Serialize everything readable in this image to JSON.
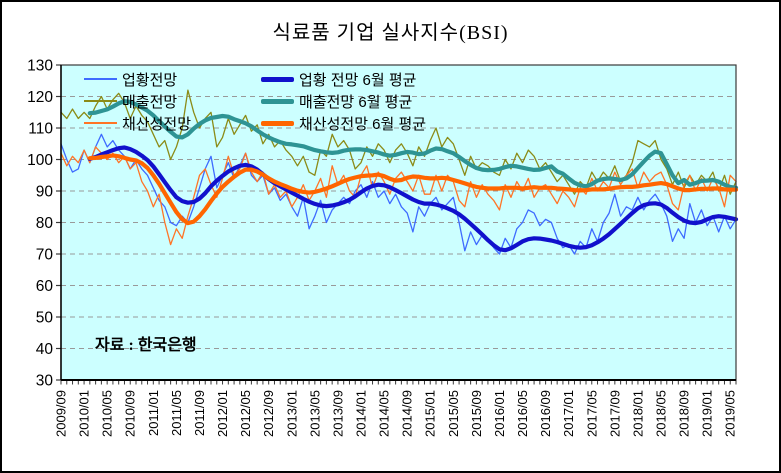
{
  "title": "식료품 기업 실사지수(BSI)",
  "source_note": "자료 : 한국은행",
  "colors": {
    "plot_background": "#CCFFFF",
    "gridline": "#999999",
    "axis": "#3a3a3a",
    "outlook_thin": "#3E6BFF",
    "sales_thin": "#8B8B17",
    "profit_thin": "#FF7426",
    "outlook_avg": "#1111CC",
    "sales_avg": "#2E9494",
    "profit_avg": "#FF6600"
  },
  "axes": {
    "y": {
      "min": 30,
      "max": 130,
      "step": 10,
      "tick_values": [
        30,
        40,
        50,
        60,
        70,
        80,
        90,
        100,
        110,
        120,
        130
      ],
      "grid_values": [
        40,
        50,
        60,
        70,
        80,
        90,
        100,
        110,
        120
      ]
    },
    "x": {
      "tick_labels": [
        "2009/09",
        "2010/01",
        "2010/05",
        "2010/09",
        "2011/01",
        "2011/05",
        "2011/09",
        "2012/01",
        "2012/05",
        "2012/09",
        "2013/01",
        "2013/05",
        "2013/09",
        "2014/01",
        "2014/05",
        "2014/09",
        "2015/01",
        "2015/05",
        "2015/09",
        "2016/01",
        "2016/05",
        "2016/09",
        "2017/01",
        "2017/05",
        "2017/09",
        "2018/01",
        "2018/05",
        "2018/09",
        "2019/01",
        "2019/05"
      ],
      "months_per_label": 4
    }
  },
  "legend": {
    "thin": [
      {
        "label": "업황전망",
        "color": "#3E6BFF"
      },
      {
        "label": "매출전망",
        "color": "#8B8B17"
      },
      {
        "label": "채산성전망",
        "color": "#FF7426"
      }
    ],
    "thick": [
      {
        "label": "업황 전망 6월 평균",
        "color": "#1111CC"
      },
      {
        "label": "매출전망 6월 평균",
        "color": "#2E9494"
      },
      {
        "label": "채산성전망 6월 평균",
        "color": "#FF6600"
      }
    ]
  },
  "chart_data": {
    "type": "line",
    "title": "식료품 기업 실사지수(BSI)",
    "x_start": "2009/09",
    "x_end": "2019/06",
    "x_frequency": "monthly",
    "ylim": [
      30,
      130
    ],
    "grid": "horizontal-dashed",
    "legend_position": "top-left-inside",
    "x_tick_labels": [
      "2009/09",
      "2010/01",
      "2010/05",
      "2010/09",
      "2011/01",
      "2011/05",
      "2011/09",
      "2012/01",
      "2012/05",
      "2012/09",
      "2013/01",
      "2013/05",
      "2013/09",
      "2014/01",
      "2014/05",
      "2014/09",
      "2015/01",
      "2015/05",
      "2015/09",
      "2016/01",
      "2016/05",
      "2016/09",
      "2017/01",
      "2017/05",
      "2017/09",
      "2018/01",
      "2018/05",
      "2018/09",
      "2019/01",
      "2019/05"
    ],
    "series": [
      {
        "name": "업황전망",
        "color": "#3E6BFF",
        "width": 1.3,
        "values": [
          105,
          100,
          96,
          97,
          103,
          99,
          104,
          108,
          104,
          106,
          103,
          101,
          97,
          100,
          97,
          95,
          91,
          87,
          85,
          80,
          79,
          82,
          80,
          85,
          91,
          97,
          101,
          91,
          95,
          99,
          94,
          98,
          102,
          95,
          93,
          95,
          89,
          91,
          87,
          89,
          85,
          82,
          88,
          78,
          82,
          87,
          80,
          84,
          86,
          88,
          86,
          90,
          92,
          88,
          93,
          88,
          90,
          86,
          89,
          85,
          83,
          77,
          85,
          82,
          86,
          88,
          84,
          86,
          88,
          80,
          71,
          77,
          73,
          76,
          75,
          72,
          70,
          75,
          72,
          78,
          80,
          84,
          83,
          79,
          81,
          80,
          75,
          72,
          73,
          70,
          74,
          72,
          78,
          74,
          80,
          83,
          89,
          82,
          85,
          84,
          88,
          84,
          87,
          89,
          86,
          82,
          74,
          78,
          75,
          86,
          80,
          84,
          79,
          82,
          77,
          82,
          78,
          81
        ]
      },
      {
        "name": "매출전망",
        "color": "#8B8B17",
        "width": 1.3,
        "values": [
          115,
          113,
          116,
          113,
          115,
          113,
          117,
          120,
          116,
          119,
          121,
          118,
          113,
          117,
          114,
          112,
          108,
          104,
          106,
          100,
          104,
          110,
          122,
          115,
          110,
          113,
          115,
          104,
          107,
          113,
          108,
          111,
          114,
          109,
          111,
          105,
          108,
          104,
          106,
          103,
          101,
          98,
          101,
          96,
          95,
          103,
          101,
          108,
          104,
          106,
          103,
          97,
          99,
          104,
          101,
          105,
          103,
          99,
          103,
          105,
          102,
          98,
          104,
          101,
          106,
          110,
          104,
          107,
          105,
          100,
          95,
          101,
          97,
          99,
          98,
          96,
          95,
          100,
          97,
          102,
          99,
          103,
          101,
          97,
          99,
          96,
          93,
          95,
          92,
          89,
          93,
          91,
          96,
          93,
          96,
          94,
          98,
          93,
          95,
          99,
          106,
          105,
          104,
          106,
          100,
          97,
          92,
          96,
          91,
          95,
          92,
          95,
          93,
          96,
          90,
          95,
          89,
          93
        ]
      },
      {
        "name": "채산성전망",
        "color": "#FF7426",
        "width": 1.3,
        "values": [
          102,
          98,
          101,
          99,
          103,
          99,
          104,
          102,
          100,
          102,
          99,
          101,
          97,
          99,
          93,
          90,
          85,
          89,
          80,
          73,
          78,
          75,
          82,
          88,
          95,
          97,
          92,
          88,
          94,
          101,
          95,
          97,
          102,
          96,
          93,
          96,
          89,
          92,
          88,
          90,
          85,
          88,
          92,
          87,
          90,
          94,
          88,
          98,
          92,
          95,
          90,
          88,
          95,
          98,
          91,
          96,
          93,
          89,
          94,
          96,
          93,
          90,
          95,
          89,
          89,
          95,
          90,
          95,
          93,
          87,
          85,
          93,
          88,
          92,
          89,
          87,
          84,
          92,
          88,
          93,
          90,
          94,
          88,
          91,
          92,
          89,
          86,
          90,
          88,
          85,
          91,
          89,
          94,
          90,
          93,
          91,
          96,
          92,
          95,
          97,
          91,
          96,
          93,
          95,
          96,
          92,
          86,
          84,
          92,
          95,
          90,
          94,
          90,
          94,
          91,
          85,
          95,
          93
        ]
      },
      {
        "name": "업황 전망 6월 평균",
        "color": "#1111CC",
        "width": 4.2,
        "values": [
          null,
          null,
          null,
          null,
          null,
          100.2,
          100.8,
          101.6,
          102.3,
          103.0,
          103.6,
          103.8,
          103.3,
          102.4,
          101.2,
          99.8,
          97.8,
          95.3,
          92.8,
          90.3,
          88.0,
          86.8,
          86.3,
          86.5,
          87.6,
          89.3,
          91.5,
          93.3,
          94.8,
          96.2,
          97.2,
          98.0,
          98.3,
          97.8,
          96.8,
          95.3,
          93.8,
          92.5,
          91.5,
          90.5,
          89.5,
          88.5,
          87.5,
          86.6,
          85.9,
          85.4,
          85.2,
          85.4,
          85.8,
          86.4,
          87.2,
          88.3,
          89.6,
          90.8,
          91.6,
          92.0,
          91.8,
          91.2,
          90.3,
          89.3,
          88.3,
          87.3,
          86.5,
          86.0,
          86.0,
          85.7,
          85.2,
          84.5,
          83.7,
          82.6,
          81.2,
          79.6,
          77.9,
          76.2,
          74.4,
          72.8,
          71.5,
          71.2,
          71.8,
          72.9,
          74.0,
          74.7,
          75.0,
          74.9,
          74.6,
          74.3,
          73.8,
          73.2,
          72.6,
          72.2,
          72.0,
          72.2,
          72.8,
          73.7,
          74.9,
          76.3,
          77.9,
          79.6,
          81.3,
          83.0,
          84.5,
          85.5,
          86.0,
          86.1,
          85.7,
          84.6,
          83.1,
          81.7,
          80.6,
          80.0,
          79.8,
          80.2,
          81.0,
          81.7,
          82.0,
          81.8,
          81.4,
          81.0
        ]
      },
      {
        "name": "매출전망 6월 평균",
        "color": "#2E9494",
        "width": 4.2,
        "values": [
          null,
          null,
          null,
          null,
          null,
          114.7,
          114.9,
          115.4,
          115.9,
          116.8,
          117.8,
          118.5,
          118.3,
          117.5,
          116.5,
          115.5,
          114.0,
          112.2,
          110.5,
          108.8,
          107.3,
          107.0,
          108.0,
          109.8,
          111.3,
          112.4,
          113.2,
          113.5,
          113.8,
          113.6,
          112.8,
          112.2,
          111.5,
          110.5,
          109.2,
          108.0,
          107.0,
          106.2,
          105.5,
          105.0,
          104.8,
          104.5,
          104.2,
          103.6,
          103.0,
          102.6,
          102.3,
          102.1,
          102.3,
          102.8,
          103.1,
          103.2,
          103.2,
          103.0,
          102.6,
          102.2,
          101.6,
          101.2,
          101.5,
          102.0,
          102.4,
          102.2,
          101.7,
          101.9,
          102.8,
          103.5,
          103.3,
          102.6,
          102.0,
          100.8,
          99.5,
          98.3,
          97.3,
          96.8,
          96.6,
          96.7,
          97.0,
          97.6,
          98.0,
          97.8,
          97.4,
          97.0,
          96.7,
          96.8,
          97.3,
          97.8,
          96.2,
          95.5,
          94.0,
          92.6,
          91.8,
          91.5,
          92.2,
          93.3,
          93.8,
          94.0,
          93.8,
          93.5,
          94.0,
          95.3,
          97.3,
          99.3,
          101.2,
          102.5,
          102.0,
          98.5,
          95.0,
          92.5,
          93.5,
          92.0,
          92.5,
          93.2,
          93.3,
          93.5,
          93.0,
          92.0,
          91.3,
          91.0
        ]
      },
      {
        "name": "채산성전망 6월 평균",
        "color": "#FF6600",
        "width": 4.2,
        "values": [
          null,
          null,
          null,
          null,
          null,
          100.4,
          100.5,
          100.8,
          101.0,
          101.3,
          101.0,
          100.5,
          100.0,
          99.7,
          98.8,
          97.3,
          95.0,
          92.3,
          89.3,
          86.3,
          83.3,
          81.0,
          79.8,
          80.3,
          82.0,
          84.2,
          86.8,
          89.2,
          91.3,
          93.0,
          94.5,
          95.8,
          96.8,
          96.8,
          96.2,
          95.2,
          94.0,
          93.0,
          92.2,
          91.5,
          90.7,
          90.1,
          89.7,
          89.5,
          89.7,
          90.2,
          90.8,
          91.5,
          92.3,
          93.1,
          93.8,
          94.3,
          94.7,
          94.9,
          95.0,
          95.2,
          94.7,
          93.9,
          93.3,
          93.5,
          94.2,
          94.6,
          94.5,
          94.2,
          94.0,
          94.0,
          94.2,
          94.0,
          93.5,
          93.0,
          92.4,
          91.8,
          91.3,
          91.0,
          90.8,
          90.8,
          90.8,
          91.0,
          91.0,
          91.0,
          90.8,
          91.0,
          91.2,
          91.0,
          91.0,
          91.0,
          90.8,
          90.7,
          90.5,
          90.3,
          90.2,
          90.3,
          90.5,
          90.5,
          90.5,
          90.7,
          91.0,
          91.2,
          91.3,
          91.3,
          91.5,
          91.8,
          92.0,
          92.3,
          92.5,
          92.2,
          91.5,
          90.8,
          90.3,
          90.3,
          90.5,
          90.7,
          90.7,
          90.8,
          90.8,
          90.5,
          90.4,
          90.4
        ]
      }
    ]
  }
}
